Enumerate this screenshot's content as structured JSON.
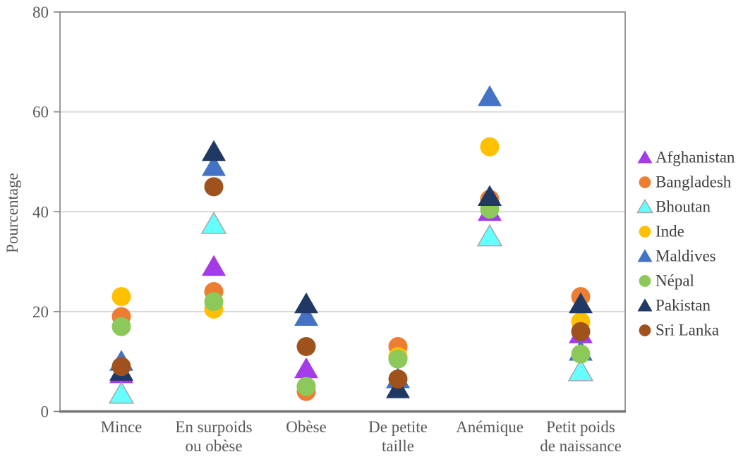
{
  "chart_data": {
    "type": "scatter",
    "title": "",
    "xlabel": "",
    "ylabel": "Pourcentage",
    "ylim": [
      0,
      80
    ],
    "yticks": [
      0,
      20,
      40,
      60,
      80
    ],
    "grid": "horizontal",
    "legend_position": "right",
    "categories": [
      "Mince",
      "En surpoids ou obèse",
      "Obèse",
      "De petite taille",
      "Anémique",
      "Petit poids de naissance"
    ],
    "category_label_lines": [
      [
        "Mince"
      ],
      [
        "En surpoids",
        "ou obèse"
      ],
      [
        "Obèse"
      ],
      [
        "De petite",
        "taille"
      ],
      [
        "Anémique"
      ],
      [
        "Petit poids",
        "de naissance"
      ]
    ],
    "series": [
      {
        "name": "Afghanistan",
        "marker": "triangle",
        "color": "#A43BE8",
        "values": [
          7.5,
          29,
          8.5,
          null,
          40,
          15.5
        ]
      },
      {
        "name": "Bangladesh",
        "marker": "circle",
        "color": "#ED7D31",
        "values": [
          19,
          24,
          4,
          13,
          42.5,
          23
        ]
      },
      {
        "name": "Bhoutan",
        "marker": "triangle",
        "color": "#66FFFF",
        "outline": "#A6A6A6",
        "values": [
          3.5,
          37.5,
          null,
          null,
          35,
          8
        ]
      },
      {
        "name": "Inde",
        "marker": "circle",
        "color": "#FFC000",
        "values": [
          23,
          20.5,
          5,
          11,
          53,
          18
        ]
      },
      {
        "name": "Maldives",
        "marker": "triangle",
        "color": "#4472C4",
        "values": [
          10,
          49,
          19,
          6.5,
          63,
          12
        ]
      },
      {
        "name": "Népal",
        "marker": "circle",
        "color": "#8CC85A",
        "values": [
          17,
          22,
          5,
          10.5,
          40.5,
          11.5
        ]
      },
      {
        "name": "Pakistan",
        "marker": "triangle",
        "color": "#203864",
        "values": [
          8,
          52,
          21.5,
          4.5,
          43,
          21.5
        ]
      },
      {
        "name": "Sri Lanka",
        "marker": "circle",
        "color": "#A0521D",
        "values": [
          9,
          45,
          13,
          6.5,
          null,
          16
        ]
      }
    ]
  },
  "style": {
    "background": "#FFFFFF",
    "axis_text_color": "#595959",
    "legend_text_color": "#404040",
    "gridline_color": "#D9D9D9",
    "border_color": "#808080",
    "bottom_axis_color": "#737373"
  }
}
